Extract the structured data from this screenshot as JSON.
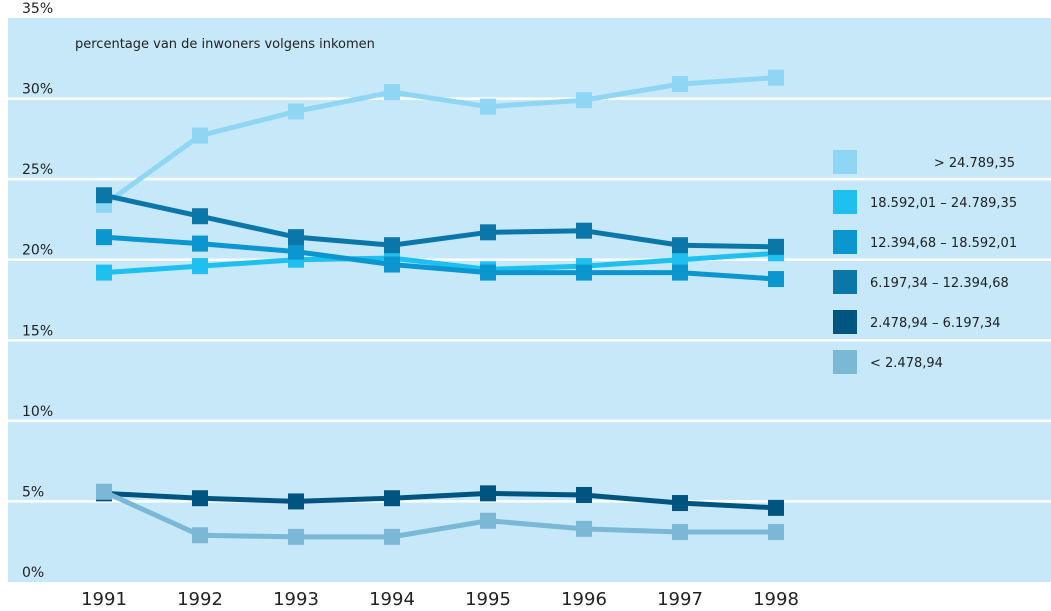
{
  "chart_data": {
    "type": "line",
    "title": "percentage van de inwoners volgens inkomen",
    "categories": [
      "1991",
      "1992",
      "1993",
      "1994",
      "1995",
      "1996",
      "1997",
      "1998"
    ],
    "series": [
      {
        "name": "> 24.789,35",
        "color": "#8fd6f4",
        "values": [
          23.4,
          27.7,
          29.2,
          30.4,
          29.5,
          29.9,
          30.9,
          31.3
        ]
      },
      {
        "name": "18.592,01 – 24.789,35",
        "color": "#1ec0ef",
        "values": [
          19.2,
          19.6,
          20.0,
          20.1,
          19.4,
          19.6,
          20.0,
          20.4
        ]
      },
      {
        "name": "12.394,68 – 18.592,01",
        "color": "#0c96cf",
        "values": [
          21.4,
          21.0,
          20.5,
          19.7,
          19.2,
          19.2,
          19.2,
          18.8
        ]
      },
      {
        "name": "6.197,34 – 12.394,68",
        "color": "#0a77a8",
        "values": [
          24.0,
          22.7,
          21.4,
          20.9,
          21.7,
          21.8,
          20.9,
          20.8
        ]
      },
      {
        "name": "2.478,94 – 6.197,34",
        "color": "#005580",
        "values": [
          5.5,
          5.2,
          5.0,
          5.2,
          5.5,
          5.4,
          4.9,
          4.6
        ]
      },
      {
        "name": "< 2.478,94",
        "color": "#7ab8d6",
        "values": [
          5.6,
          2.9,
          2.8,
          2.8,
          3.8,
          3.3,
          3.1,
          3.1
        ]
      }
    ],
    "ylim": [
      0,
      35
    ],
    "yticks": [
      {
        "value": 0,
        "label": "0%"
      },
      {
        "value": 5,
        "label": "5%"
      },
      {
        "value": 10,
        "label": "10%"
      },
      {
        "value": 15,
        "label": "15%"
      },
      {
        "value": 20,
        "label": "20%"
      },
      {
        "value": 25,
        "label": "25%"
      },
      {
        "value": 30,
        "label": "30%"
      },
      {
        "value": 35,
        "label": "35%"
      }
    ],
    "grid": true,
    "legend": "right"
  }
}
